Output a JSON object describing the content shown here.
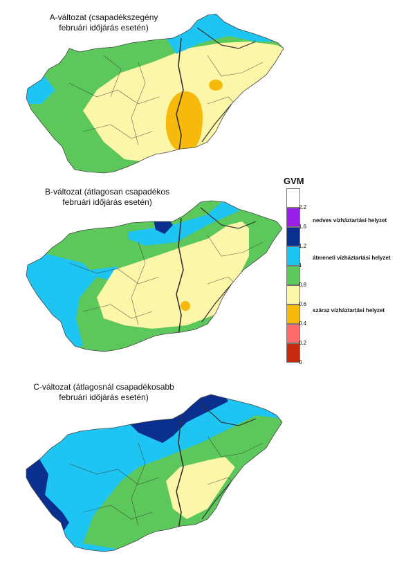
{
  "maps": [
    {
      "title_line1": "A-változat (csapadékszegény",
      "title_line2": "februári időjárás esetén)"
    },
    {
      "title_line1": "B-változat (átlagosan csapadékos",
      "title_line2": "februári időjárás esetén)"
    },
    {
      "title_line1": "C-változat (átlagosnál csapadékosabb",
      "title_line2": "februári időjárás esetén)"
    }
  ],
  "legend": {
    "title": "GVM",
    "classes": [
      {
        "from": 2.2,
        "to": null,
        "color": "#ffffff"
      },
      {
        "from": 1.6,
        "to": 2.2,
        "color": "#9b1de8"
      },
      {
        "from": 1.2,
        "to": 1.6,
        "color": "#0b2f8f"
      },
      {
        "from": 1.0,
        "to": 1.2,
        "color": "#1ec4f2"
      },
      {
        "from": 0.8,
        "to": 1.0,
        "color": "#5cc75a"
      },
      {
        "from": 0.6,
        "to": 0.8,
        "color": "#fbf6a8"
      },
      {
        "from": 0.4,
        "to": 0.6,
        "color": "#f7b90b"
      },
      {
        "from": 0.2,
        "to": 0.4,
        "color": "#ff6b6b"
      },
      {
        "from": 0.0,
        "to": 0.2,
        "color": "#c52a0c"
      }
    ],
    "ticks": [
      "2.2",
      "1.6",
      "1.2",
      "1",
      "0.8",
      "0.6",
      "0.4",
      "0.2",
      "0"
    ],
    "categories": {
      "wet": "nedves vízháztartási helyzet",
      "transitional": "átmeneti vízháztartási helyzet",
      "dry": "száraz vízháztartási helyzet"
    }
  }
}
